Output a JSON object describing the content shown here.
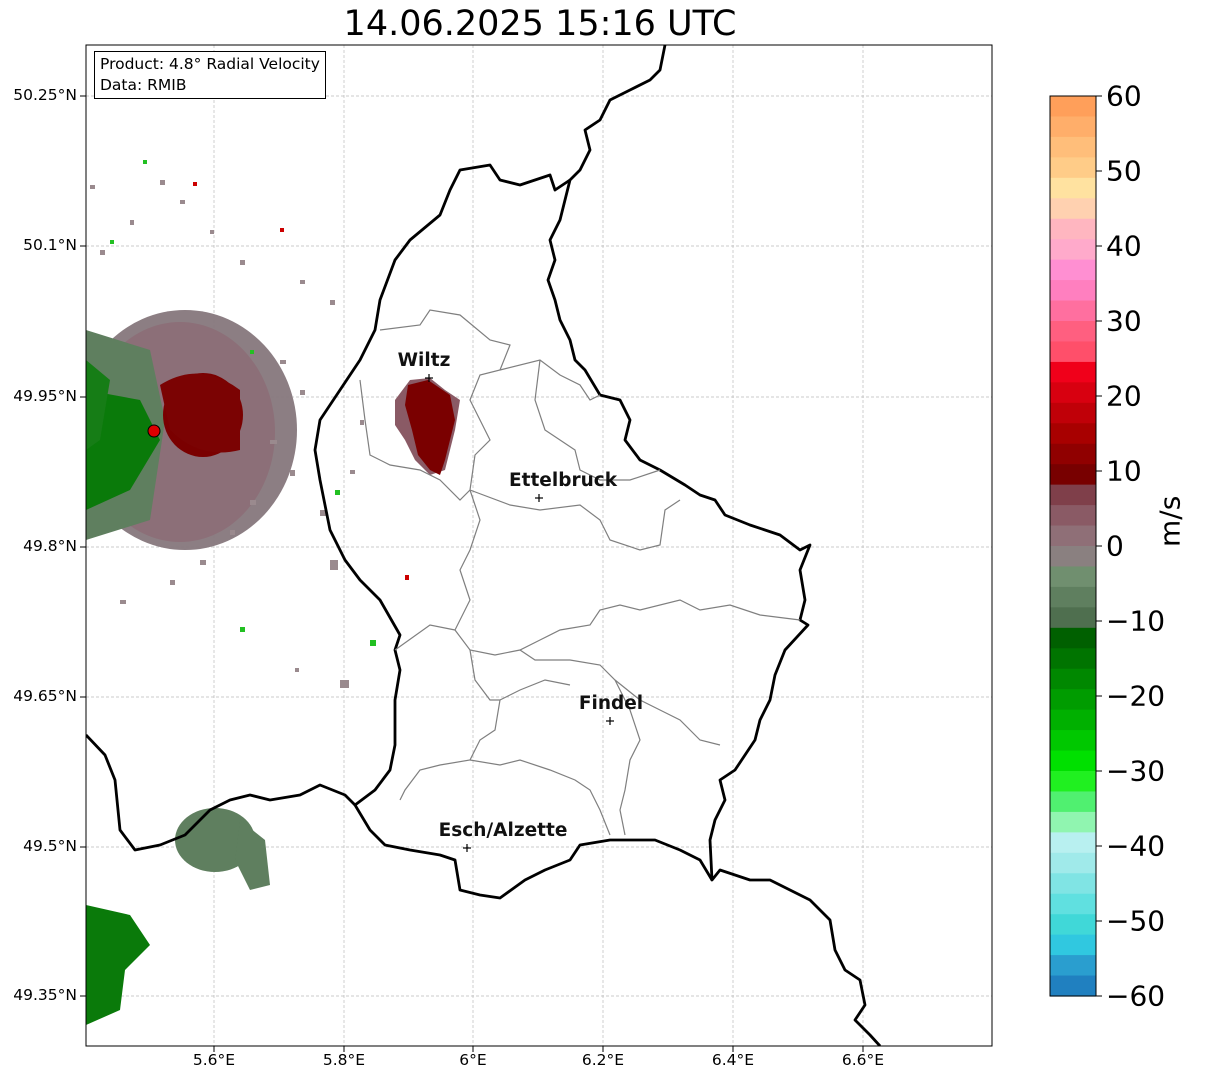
{
  "title": "14.06.2025 15:16 UTC",
  "info": {
    "product": "Product: 4.8° Radial Velocity",
    "source": "Data: RMIB"
  },
  "axes": {
    "lat_labels": [
      "50.25°N",
      "50.1°N",
      "49.95°N",
      "49.8°N",
      "49.65°N",
      "49.5°N",
      "49.35°N"
    ],
    "lon_labels": [
      "5.6°E",
      "5.8°E",
      "6°E",
      "6.2°E",
      "6.4°E",
      "6.6°E"
    ]
  },
  "cities": [
    {
      "name": "Wiltz"
    },
    {
      "name": "Ettelbruck"
    },
    {
      "name": "Findel"
    },
    {
      "name": "Esch/Alzette"
    }
  ],
  "colorbar": {
    "unit": "m/s",
    "ticks": [
      "60",
      "50",
      "40",
      "30",
      "20",
      "10",
      "0",
      "−10",
      "−20",
      "−30",
      "−40",
      "−50",
      "−60"
    ],
    "min": -60,
    "max": 60,
    "colors_top_to_bottom": [
      "#ff9f5a",
      "#ffae6a",
      "#ffbe7a",
      "#ffcc88",
      "#ffe2a0",
      "#ffd1b0",
      "#ffb6c0",
      "#ffaacb",
      "#ff8fd2",
      "#ff7fbf",
      "#ff6f9f",
      "#ff5f80",
      "#ff4f6a",
      "#f0001a",
      "#d80010",
      "#c00008",
      "#a80000",
      "#900000",
      "#780000",
      "#7f3f4a",
      "#8a5a65",
      "#8f6f77",
      "#8a8080",
      "#708f6f",
      "#5f7f5f",
      "#4f6f4f",
      "#006000",
      "#007400",
      "#008800",
      "#009c00",
      "#00b000",
      "#00c800",
      "#00e000",
      "#20f020",
      "#50f070",
      "#90f5b0",
      "#b8f0f0",
      "#a0eaea",
      "#80e4e4",
      "#60e0e0",
      "#40d8d8",
      "#30c8e0",
      "#2a9ecf",
      "#2080c0"
    ]
  }
}
